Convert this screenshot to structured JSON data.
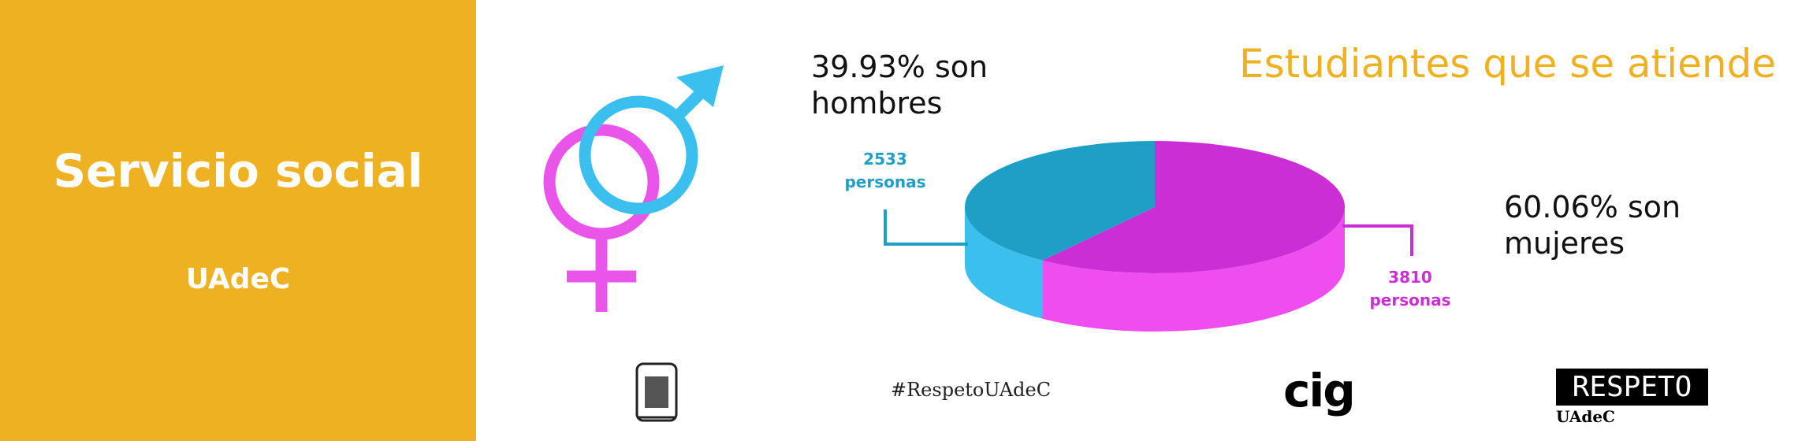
{
  "sidebar": {
    "title": "Servicio social",
    "subtitle": "UAdeC"
  },
  "chart_data": {
    "type": "pie3d",
    "title": "Estudiantes que se atiende",
    "categories": [
      "39.93% son hombres",
      "60.06% son mujeres"
    ],
    "values": [
      2533,
      3810
    ],
    "value_labels": [
      "2533 personas",
      "3810 personas"
    ],
    "colors": [
      "#1e9fc6",
      "#cc2ed6"
    ],
    "side_colors": [
      "#3bbfee",
      "#ee4ef0"
    ]
  },
  "footer": {
    "hashtag": "#RespetoUAdeC",
    "cig": "cig",
    "respeto": "RESPETO",
    "respeto_sub": "UAdeC"
  }
}
